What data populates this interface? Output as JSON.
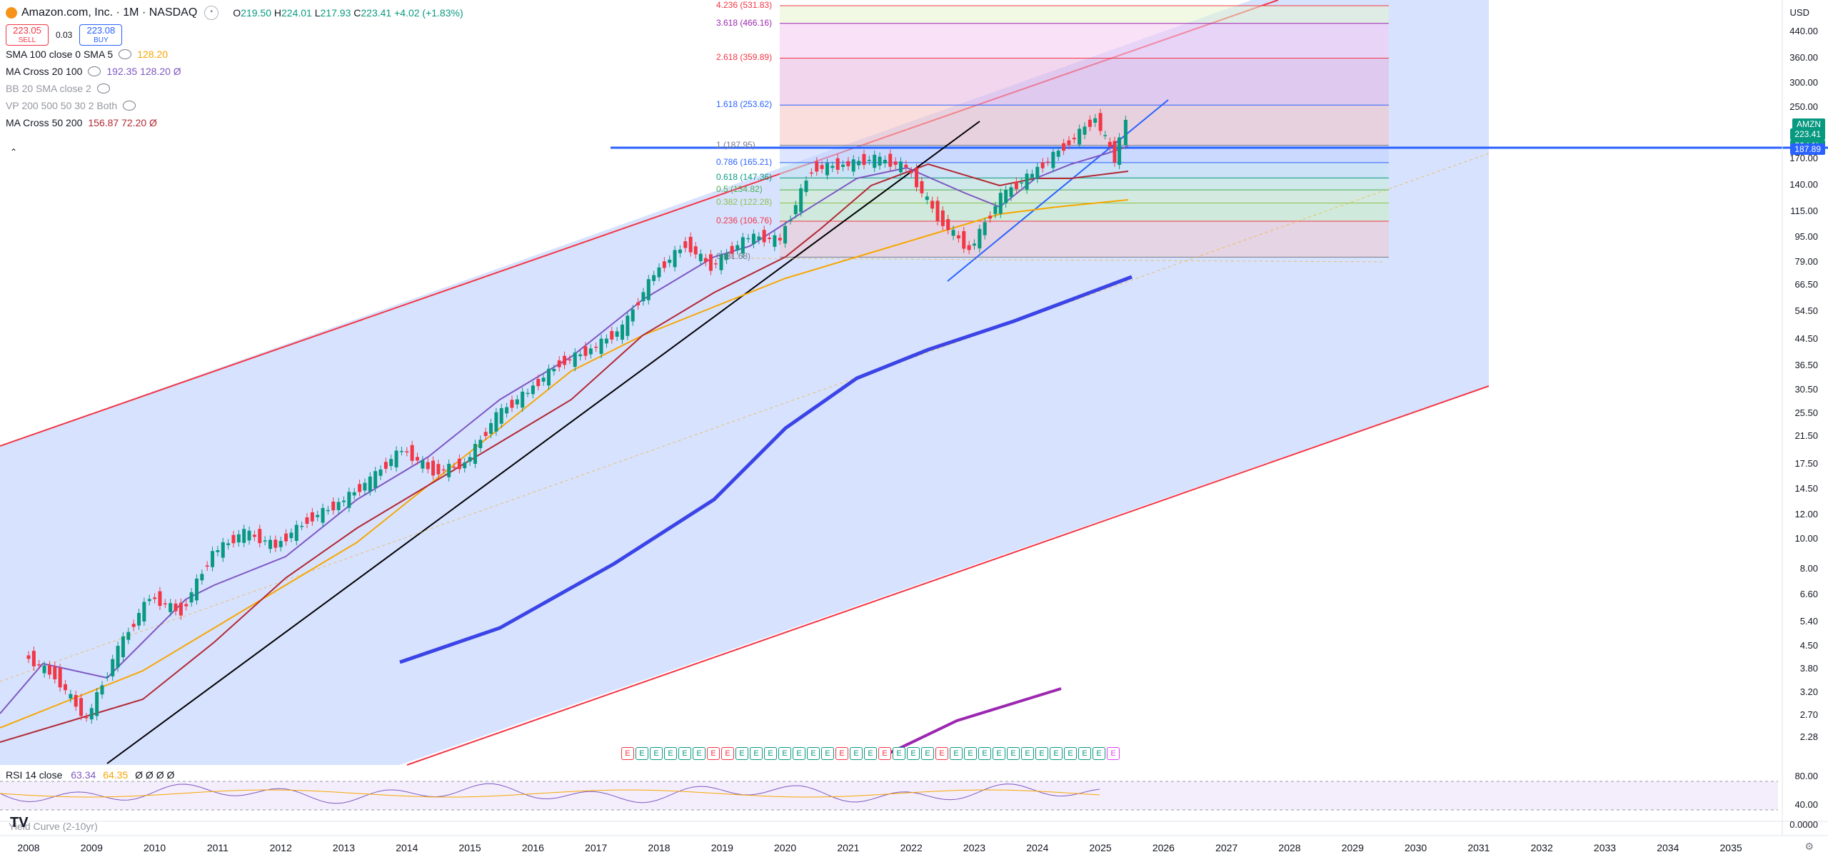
{
  "header": {
    "symbol_title": "Amazon.com, Inc. · 1M · NASDAQ",
    "ohlc": {
      "o_label": "O",
      "o": "219.50",
      "h_label": "H",
      "h": "224.01",
      "l_label": "L",
      "l": "217.93",
      "c_label": "C",
      "c": "223.41",
      "change": "+4.02 (+1.83%)"
    },
    "sell_price": "223.05",
    "sell_label": "SELL",
    "spread": "0.03",
    "buy_price": "223.08",
    "buy_label": "BUY"
  },
  "indicators": [
    {
      "name": "SMA 100 close 0 SMA 5",
      "values": "128.20"
    },
    {
      "name": "MA Cross 20 100",
      "values": "192.35 128.20 Ø"
    },
    {
      "name": "BB 20 SMA close 2",
      "values": ""
    },
    {
      "name": "VP 200 500 50 30 2 Both",
      "values": ""
    },
    {
      "name": "MA Cross 50 200",
      "values": "156.87 72.20 Ø"
    }
  ],
  "price_axis": {
    "currency": "USD",
    "ticks": [
      "440.00",
      "360.00",
      "300.00",
      "250.00",
      "170.00",
      "140.00",
      "115.00",
      "95.00",
      "79.00",
      "66.50",
      "54.50",
      "44.50",
      "36.50",
      "30.50",
      "25.50",
      "21.50",
      "17.50",
      "14.50",
      "12.00",
      "10.00",
      "8.00",
      "6.60",
      "5.40",
      "4.50",
      "3.80",
      "3.20",
      "2.70",
      "2.28"
    ],
    "last_symbol": "AMZN",
    "last_price": "223.41",
    "countdown": "26d 1h",
    "level_tag": "187.89"
  },
  "fib_levels": [
    {
      "label": "4.236 (531.83)",
      "color": "#f23645"
    },
    {
      "label": "3.618 (466.16)",
      "color": "#9c27b0"
    },
    {
      "label": "2.618 (359.89)",
      "color": "#f23645"
    },
    {
      "label": "1.618 (253.62)",
      "color": "#2962ff"
    },
    {
      "label": "1 (187.95)",
      "color": "#787b86"
    },
    {
      "label": "0.786 (165.21)",
      "color": "#2962ff"
    },
    {
      "label": "0.618 (147.36)",
      "color": "#089981"
    },
    {
      "label": "0.5 (134.82)",
      "color": "#4caf50"
    },
    {
      "label": "0.382 (122.28)",
      "color": "#8bc34a"
    },
    {
      "label": "0.236 (106.76)",
      "color": "#f23645"
    },
    {
      "label": "0 (81.68)",
      "color": "#787b86"
    }
  ],
  "time_axis": {
    "ticks": [
      "2008",
      "2009",
      "2010",
      "2011",
      "2012",
      "2013",
      "2014",
      "2015",
      "2016",
      "2017",
      "2018",
      "2019",
      "2020",
      "2021",
      "2022",
      "2023",
      "2024",
      "2025",
      "2026",
      "2027",
      "2028",
      "2029",
      "2030",
      "2031",
      "2032",
      "2033",
      "2034",
      "2035"
    ]
  },
  "rsi": {
    "label": "RSI 14 close",
    "value": "63.34",
    "ma": "64.35",
    "extra": "Ø Ø Ø Ø",
    "ticks": [
      "80.00",
      "40.00"
    ]
  },
  "yield_curve": {
    "label": "Yield Curve (2-10yr)",
    "tick": "0.0000"
  },
  "earnings_markers": [
    "E",
    "E",
    "E",
    "E",
    "E",
    "E",
    "E",
    "E",
    "E",
    "E",
    "E",
    "E",
    "E",
    "E",
    "E",
    "E",
    "E",
    "E",
    "E",
    "E",
    "E",
    "E",
    "E",
    "E",
    "E",
    "E",
    "E",
    "E",
    "E",
    "E",
    "E",
    "E",
    "E",
    "E",
    "E"
  ],
  "colors": {
    "up": "#089981",
    "down": "#f23645",
    "channel": "#f23645",
    "channel_fill": "#c9d8ff",
    "trend_blue": "#2962ff",
    "ma_purple": "#7e57c2",
    "ma_maroon": "#b22833",
    "ma_orange": "#f7a600",
    "ma200_blue": "#3b44e6",
    "yield_purple": "#9c27b0"
  },
  "chart_data": {
    "type": "line",
    "title": "Amazon.com, Inc. · 1M · NASDAQ",
    "log_scale": true,
    "ylim": [
      2.28,
      440
    ],
    "x_range": [
      "2008",
      "2035"
    ],
    "series": [
      {
        "name": "AMZN",
        "x": [
          2008.0,
          2008.5,
          2009.0,
          2009.5,
          2010.0,
          2010.5,
          2011.0,
          2011.5,
          2012.0,
          2012.5,
          2013.0,
          2013.5,
          2014.0,
          2014.5,
          2015.0,
          2015.5,
          2016.0,
          2016.5,
          2017.0,
          2017.5,
          2018.0,
          2018.5,
          2018.9,
          2019.5,
          2020.0,
          2020.5,
          2021.0,
          2021.5,
          2022.0,
          2022.5,
          2023.0,
          2023.5,
          2024.0,
          2024.5,
          2025.0,
          2025.3,
          2025.5
        ],
        "y": [
          4.2,
          3.6,
          2.6,
          4.4,
          6.5,
          5.8,
          9.0,
          10.5,
          9.5,
          11.5,
          13.0,
          15.5,
          19.5,
          16.5,
          17.5,
          25.0,
          30.0,
          37.0,
          41.0,
          48.0,
          72.0,
          90.0,
          76.0,
          95.0,
          93.0,
          158.0,
          162.0,
          170.0,
          160.0,
          110.0,
          86.0,
          128.0,
          152.0,
          186.0,
          230.0,
          170.0,
          223.41
        ]
      }
    ],
    "last_price": 223.41,
    "fib_anchor_low": 81.68,
    "fib_anchor_high": 187.95
  }
}
